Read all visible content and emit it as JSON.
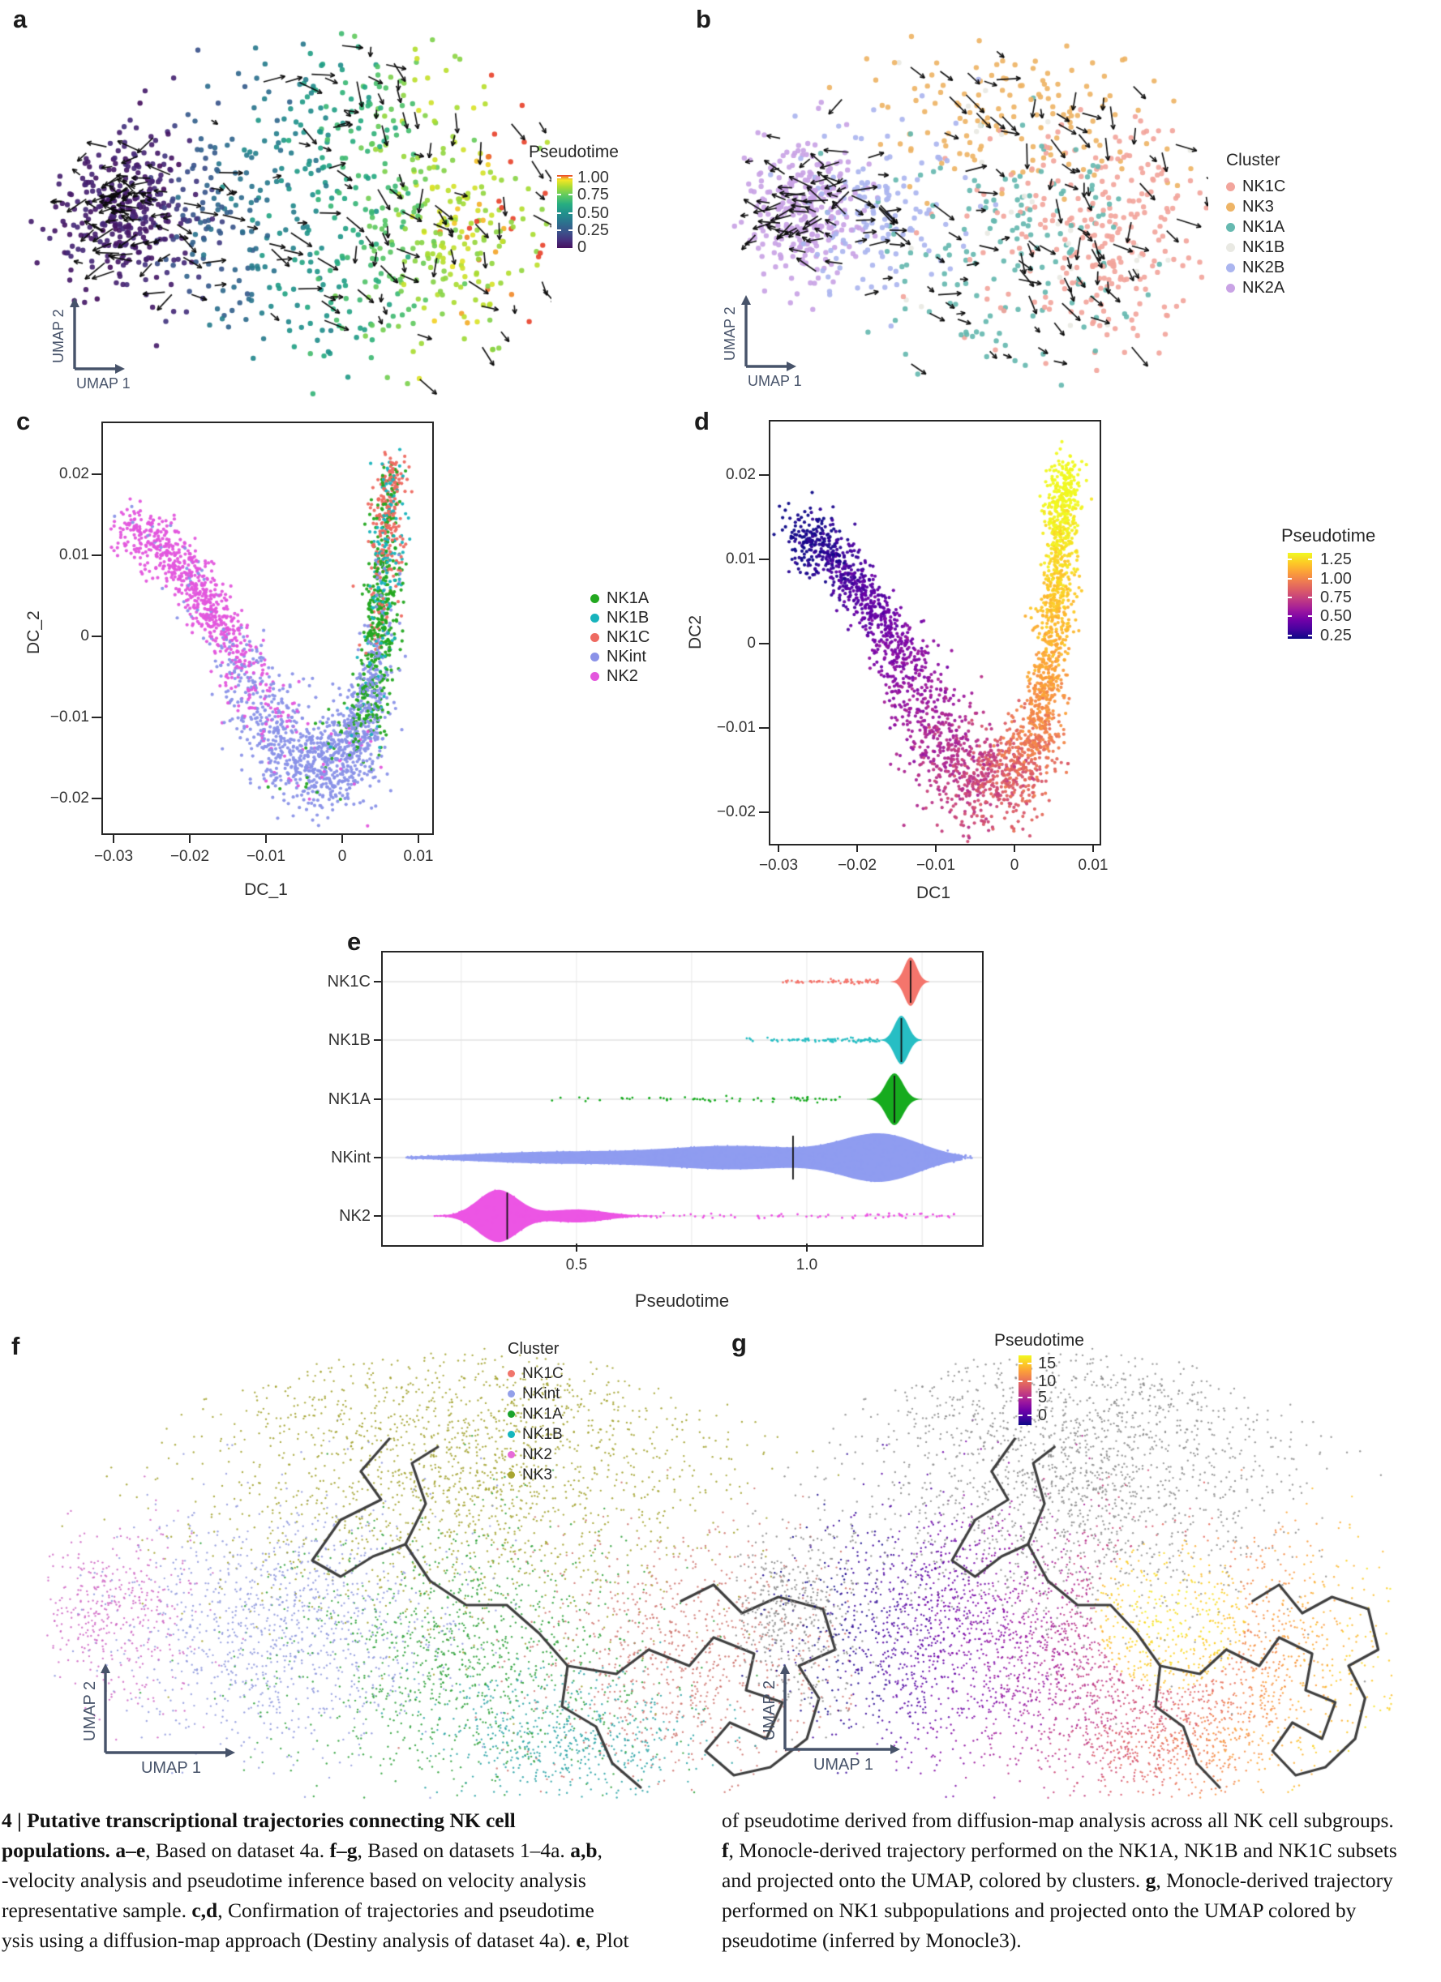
{
  "panels": {
    "a": {
      "letter": "a",
      "axes": {
        "x": "UMAP 1",
        "y": "UMAP 2"
      },
      "colorbar": {
        "title": "Pseudotime",
        "ticks": [
          "1.00",
          "0.75",
          "0.50",
          "0.25",
          "0"
        ]
      }
    },
    "b": {
      "letter": "b",
      "axes": {
        "x": "UMAP 1",
        "y": "UMAP 2"
      },
      "legend": {
        "title": "Cluster",
        "items": [
          {
            "label": "NK1C",
            "color": "#f2a59c"
          },
          {
            "label": "NK3",
            "color": "#eeb466"
          },
          {
            "label": "NK1A",
            "color": "#66b9b0"
          },
          {
            "label": "NK1B",
            "color": "#e9e9e3"
          },
          {
            "label": "NK2B",
            "color": "#abb5ef"
          },
          {
            "label": "NK2A",
            "color": "#c9a3e5"
          }
        ]
      }
    },
    "c": {
      "letter": "c",
      "axes": {
        "x": "DC_1",
        "y": "DC_2",
        "xticks": [
          "−0.03",
          "−0.02",
          "−0.01",
          "0",
          "0.01"
        ],
        "yticks": [
          "0.02",
          "0.01",
          "0",
          "−0.01",
          "−0.02"
        ]
      },
      "legend": {
        "items": [
          {
            "label": "NK1A",
            "color": "#23a820"
          },
          {
            "label": "NK1B",
            "color": "#17b3bc"
          },
          {
            "label": "NK1C",
            "color": "#ee6a61"
          },
          {
            "label": "NKint",
            "color": "#8a92e8"
          },
          {
            "label": "NK2",
            "color": "#e356dd"
          }
        ]
      }
    },
    "d": {
      "letter": "d",
      "axes": {
        "x": "DC1",
        "y": "DC2",
        "xticks": [
          "−0.03",
          "−0.02",
          "−0.01",
          "0",
          "0.01"
        ],
        "yticks": [
          "0.02",
          "0.01",
          "0",
          "−0.01",
          "−0.02"
        ]
      },
      "colorbar": {
        "title": "Pseudotime",
        "ticks": [
          "1.25",
          "1.00",
          "0.75",
          "0.50",
          "0.25"
        ]
      }
    },
    "e": {
      "letter": "e",
      "categories": [
        "NK1C",
        "NK1B",
        "NK1A",
        "NKint",
        "NK2"
      ],
      "colors": {
        "NK1C": "#f4756c",
        "NK1B": "#27bec4",
        "NK1A": "#16ab1e",
        "NKint": "#8f9cf0",
        "NK2": "#ec55e4"
      },
      "medians": [
        1.225,
        1.205,
        1.19,
        0.97,
        0.35
      ],
      "xticks": [
        "0.5",
        "1.0"
      ],
      "xlabel": "Pseudotime"
    },
    "f": {
      "letter": "f",
      "axes": {
        "x": "UMAP 1",
        "y": "UMAP 2"
      },
      "legend": {
        "title": "Cluster",
        "items": [
          {
            "label": "NK1C",
            "color": "#f0756b"
          },
          {
            "label": "NKint",
            "color": "#93a0ea"
          },
          {
            "label": "NK1A",
            "color": "#1aa32c"
          },
          {
            "label": "NK1B",
            "color": "#15b6bd"
          },
          {
            "label": "NK2",
            "color": "#e66ad8"
          },
          {
            "label": "NK3",
            "color": "#a8a531"
          }
        ]
      },
      "plot_colors": {
        "NK1C": "#cf7570",
        "NKint": "#8f99dd",
        "NK1A": "#2ea13a",
        "NK1B": "#2aa3a6",
        "NK2": "#cf68c4",
        "NK3": "#a2a22e"
      }
    },
    "g": {
      "letter": "g",
      "axes": {
        "x": "UMAP 1",
        "y": "UMAP 2"
      },
      "colorbar": {
        "title": "Pseudotime",
        "ticks": [
          "15",
          "10",
          "5",
          "0"
        ]
      },
      "gray": "#8d8d8d"
    }
  },
  "ramps": {
    "viridis_red": [
      [
        0,
        "#45105e"
      ],
      [
        0.1,
        "#472f7d"
      ],
      [
        0.22,
        "#3b528b"
      ],
      [
        0.35,
        "#2c728e"
      ],
      [
        0.48,
        "#21918c"
      ],
      [
        0.6,
        "#27ad81"
      ],
      [
        0.72,
        "#5ec962"
      ],
      [
        0.84,
        "#aadc32"
      ],
      [
        0.93,
        "#f2e626"
      ],
      [
        0.975,
        "#f39a2b"
      ],
      [
        1,
        "#e8432d"
      ]
    ],
    "plasma": [
      [
        0,
        "#0d0887"
      ],
      [
        0.11,
        "#46039f"
      ],
      [
        0.22,
        "#7201a8"
      ],
      [
        0.33,
        "#9c179e"
      ],
      [
        0.44,
        "#bd3786"
      ],
      [
        0.55,
        "#d8576b"
      ],
      [
        0.66,
        "#ed7953"
      ],
      [
        0.77,
        "#fb9e3a"
      ],
      [
        0.88,
        "#fdc926"
      ],
      [
        1,
        "#f0f921"
      ]
    ]
  },
  "style": {
    "trajectory": "#3f3f3f",
    "axis_arrow": "#47536a",
    "arrow": "#0b0b0b"
  },
  "caption": {
    "left": [
      {
        "segs": [
          {
            "t": "4 | Putative transcriptional trajectories connecting NK cell",
            "b": true
          }
        ]
      },
      {
        "segs": [
          {
            "t": "populations. ",
            "b": true
          },
          {
            "t": "a",
            "b": true
          },
          {
            "t": "–",
            "b": true
          },
          {
            "t": "e",
            "b": true
          },
          {
            "t": ", Based on dataset 4a. "
          },
          {
            "t": "f–g",
            "b": true
          },
          {
            "t": ", Based on datasets 1–4a. "
          },
          {
            "t": "a,b",
            "b": true
          },
          {
            "t": ","
          }
        ]
      },
      {
        "segs": [
          {
            "t": "-velocity analysis and pseudotime inference based on velocity analysis"
          }
        ]
      },
      {
        "segs": [
          {
            "t": "representative sample. "
          },
          {
            "t": "c,d",
            "b": true
          },
          {
            "t": ", Confirmation of trajectories and pseudotime"
          }
        ]
      },
      {
        "segs": [
          {
            "t": "ysis using a diffusion-map approach (Destiny analysis of dataset 4a). "
          },
          {
            "t": "e",
            "b": true
          },
          {
            "t": ", Plot"
          }
        ]
      }
    ],
    "right": [
      {
        "segs": [
          {
            "t": "of pseudotime derived from diffusion-map analysis across all NK cell subgroups."
          }
        ]
      },
      {
        "segs": [
          {
            "t": "f",
            "b": true
          },
          {
            "t": ", Monocle-derived trajectory performed on the NK1A, NK1B and NK1C subsets"
          }
        ]
      },
      {
        "segs": [
          {
            "t": "and projected onto the UMAP, colored by clusters. "
          },
          {
            "t": "g",
            "b": true
          },
          {
            "t": ", Monocle-derived trajectory"
          }
        ]
      },
      {
        "segs": [
          {
            "t": "performed on NK1 subpopulations and projected onto the UMAP colored by"
          }
        ]
      },
      {
        "segs": [
          {
            "t": "pseudotime (inferred by Monocle3)."
          }
        ]
      }
    ]
  },
  "chart_data": [
    {
      "id": "a",
      "type": "scatter",
      "xlabel": "UMAP 1",
      "ylabel": "UMAP 2",
      "color_by": "Pseudotime",
      "colorbar_ticks": [
        1.0,
        0.75,
        0.5,
        0.25,
        0
      ],
      "note": "RNA-velocity UMAP; dark purple cells (pseudotime 0) form dense left cluster, colors progress through teal/green/yellow to sparse red (1.0) on the right; black velocity arrows overlay"
    },
    {
      "id": "b",
      "type": "scatter",
      "xlabel": "UMAP 1",
      "ylabel": "UMAP 2",
      "legend_title": "Cluster",
      "series": [
        "NK1C",
        "NK3",
        "NK1A",
        "NK1B",
        "NK2B",
        "NK2A"
      ],
      "note": "same UMAP colored by cluster: NK2A purple left, NK2B periwinkle, NK3 orange top, NK1A teal center, NK1C salmon right; velocity arrows overlay"
    },
    {
      "id": "c",
      "type": "scatter",
      "xlabel": "DC_1",
      "ylabel": "DC_2",
      "xlim": [
        -0.033,
        0.012
      ],
      "ylim": [
        -0.025,
        0.026
      ],
      "xticks": [
        -0.03,
        -0.02,
        -0.01,
        0,
        0.01
      ],
      "yticks": [
        0.02,
        0.01,
        0,
        -0.01,
        -0.02
      ],
      "series": [
        "NK1A",
        "NK1B",
        "NK1C",
        "NKint",
        "NK2"
      ],
      "note": "V-shaped diffusion map: NK2 magenta upper-left arm, NKint periwinkle bottom, NK1A green rising right arm, NK1B teal mixed, NK1C salmon at upper right tip"
    },
    {
      "id": "d",
      "type": "scatter",
      "xlabel": "DC1",
      "ylabel": "DC2",
      "xlim": [
        -0.033,
        0.012
      ],
      "ylim": [
        -0.025,
        0.026
      ],
      "color_by": "Pseudotime",
      "colorbar_ticks": [
        1.25,
        1.0,
        0.75,
        0.5,
        0.25
      ],
      "note": "same V shape colored by pseudotime: dark blue upper-left to yellow upper-right (plasma colormap)"
    },
    {
      "id": "e",
      "type": "violin",
      "categories": [
        "NK1C",
        "NK1B",
        "NK1A",
        "NKint",
        "NK2"
      ],
      "medians": [
        1.225,
        1.205,
        1.19,
        0.97,
        0.35
      ],
      "xlabel": "Pseudotime",
      "xticks": [
        0.5,
        1.0
      ],
      "xlim": [
        0.08,
        1.38
      ]
    },
    {
      "id": "f",
      "type": "scatter",
      "xlabel": "UMAP 1",
      "ylabel": "UMAP 2",
      "legend_title": "Cluster",
      "series": [
        "NK1C",
        "NKint",
        "NK1A",
        "NK1B",
        "NK2",
        "NK3"
      ],
      "note": "dense UMAP of datasets 1-4a with dark Monocle trajectory; NK3 olive top, NK2 magenta left, NKint periwinkle, NK1A green center, NK1B teal bottom, NK1C salmon right"
    },
    {
      "id": "g",
      "type": "scatter",
      "xlabel": "UMAP 1",
      "ylabel": "UMAP 2",
      "color_by": "Pseudotime",
      "colorbar_ticks": [
        15,
        10,
        5,
        0
      ],
      "note": "same UMAP; NK2/NK3 gray, NK1 subsets colored by Monocle3 pseudotime from dark blue (0) through magenta/red to yellow core (15); dark trajectory overlay"
    }
  ]
}
